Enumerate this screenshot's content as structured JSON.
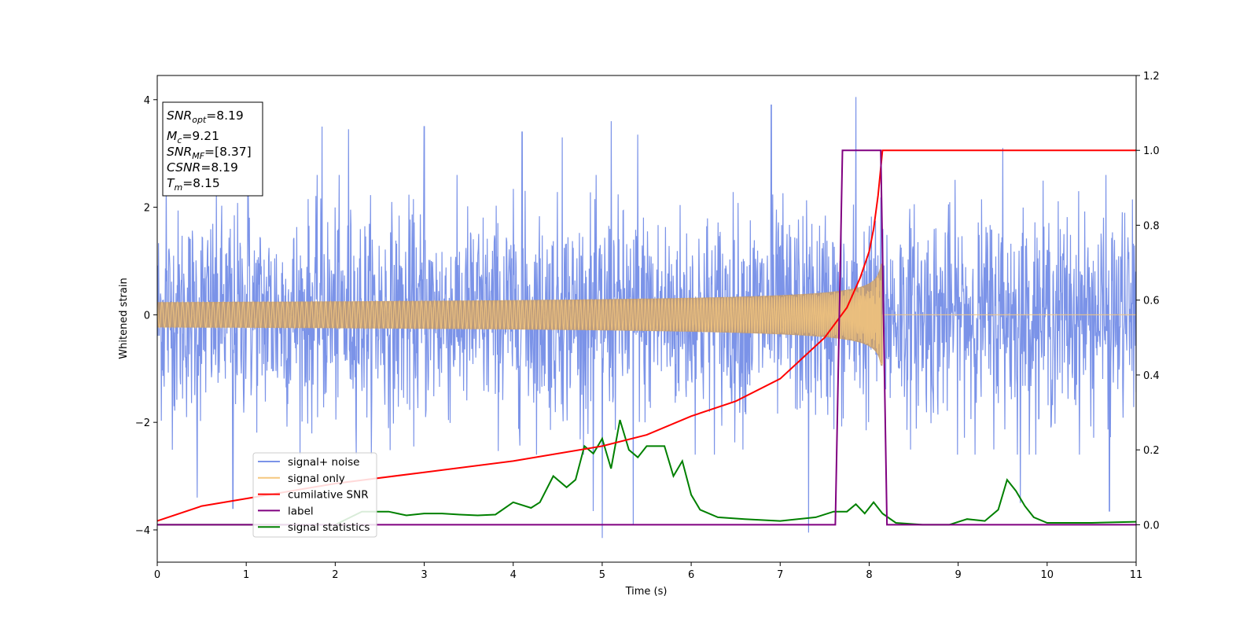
{
  "chart_data": {
    "type": "line",
    "xlabel": "Time (s)",
    "ylabel": "Whitened strain",
    "xlim": [
      0,
      11
    ],
    "ylim": [
      -4.6,
      4.45
    ],
    "y2lim": [
      -0.1,
      1.2
    ],
    "x_ticks": [
      "0",
      "1",
      "2",
      "3",
      "4",
      "5",
      "6",
      "7",
      "8",
      "9",
      "10",
      "11"
    ],
    "y_ticks": [
      "−4",
      "−2",
      "0",
      "2",
      "4"
    ],
    "y2_ticks": [
      "0.0",
      "0.2",
      "0.4",
      "0.6",
      "0.8",
      "1.0",
      "1.2"
    ],
    "grid": false,
    "legend_position": "lower-left",
    "colors": {
      "noise": "#7b93e8",
      "signal": "#f5c77e",
      "signal_fill": "#c09a70",
      "csnr": "#ff0000",
      "label": "#800080",
      "stats": "#008000"
    },
    "series": [
      {
        "name": "signal+ noise",
        "axis": "left",
        "description_values": {
          "envelope_max_typical": 2.2,
          "envelope_min_typical": -2.2,
          "spikes": [
            [
              0.1,
              2.7
            ],
            [
              1.02,
              2.6
            ],
            [
              1.85,
              3.5
            ],
            [
              2.15,
              3.45
            ],
            [
              3.0,
              3.5
            ],
            [
              4.1,
              3.4
            ],
            [
              4.55,
              3.3
            ],
            [
              5.1,
              3.6
            ],
            [
              5.4,
              3.35
            ],
            [
              6.9,
              3.9
            ],
            [
              7.85,
              4.05
            ],
            [
              9.5,
              3.1
            ],
            [
              0.45,
              -3.4
            ],
            [
              0.85,
              -3.6
            ],
            [
              4.9,
              -3.65
            ],
            [
              5.0,
              -4.15
            ],
            [
              5.35,
              -3.9
            ],
            [
              7.32,
              -4.05
            ],
            [
              9.7,
              -3.5
            ],
            [
              10.7,
              -3.65
            ]
          ]
        }
      },
      {
        "name": "signal only",
        "axis": "left",
        "start_time": 0,
        "merger_time": 8.15,
        "amplitude_start": 0.03,
        "amplitude_peak": 0.95
      },
      {
        "name": "cumilative SNR",
        "axis": "right",
        "points": [
          [
            0,
            0.01
          ],
          [
            0.5,
            0.05
          ],
          [
            1,
            0.07
          ],
          [
            2,
            0.11
          ],
          [
            3,
            0.14
          ],
          [
            4,
            0.17
          ],
          [
            5,
            0.21
          ],
          [
            5.5,
            0.24
          ],
          [
            6,
            0.29
          ],
          [
            6.5,
            0.33
          ],
          [
            7,
            0.39
          ],
          [
            7.5,
            0.5
          ],
          [
            7.75,
            0.58
          ],
          [
            7.9,
            0.66
          ],
          [
            8.0,
            0.73
          ],
          [
            8.05,
            0.79
          ],
          [
            8.1,
            0.88
          ],
          [
            8.15,
            1.0
          ],
          [
            11,
            1.0
          ]
        ]
      },
      {
        "name": "label",
        "axis": "right",
        "points": [
          [
            0,
            0.0
          ],
          [
            7.62,
            0.0
          ],
          [
            7.7,
            1.0
          ],
          [
            8.13,
            1.0
          ],
          [
            8.2,
            0.0
          ],
          [
            11,
            0.0
          ]
        ]
      },
      {
        "name": "signal statistics",
        "axis": "right",
        "points": [
          [
            0,
            0.0
          ],
          [
            2.0,
            0.0
          ],
          [
            2.3,
            0.035
          ],
          [
            2.6,
            0.035
          ],
          [
            2.8,
            0.025
          ],
          [
            3.0,
            0.03
          ],
          [
            3.2,
            0.03
          ],
          [
            3.4,
            0.027
          ],
          [
            3.6,
            0.025
          ],
          [
            3.8,
            0.027
          ],
          [
            4.0,
            0.06
          ],
          [
            4.2,
            0.045
          ],
          [
            4.3,
            0.06
          ],
          [
            4.45,
            0.13
          ],
          [
            4.6,
            0.1
          ],
          [
            4.7,
            0.12
          ],
          [
            4.8,
            0.21
          ],
          [
            4.9,
            0.19
          ],
          [
            5.0,
            0.23
          ],
          [
            5.1,
            0.15
          ],
          [
            5.2,
            0.28
          ],
          [
            5.3,
            0.2
          ],
          [
            5.4,
            0.18
          ],
          [
            5.5,
            0.21
          ],
          [
            5.7,
            0.21
          ],
          [
            5.8,
            0.13
          ],
          [
            5.9,
            0.17
          ],
          [
            6.0,
            0.08
          ],
          [
            6.1,
            0.04
          ],
          [
            6.3,
            0.02
          ],
          [
            6.6,
            0.015
          ],
          [
            7.0,
            0.01
          ],
          [
            7.4,
            0.02
          ],
          [
            7.6,
            0.035
          ],
          [
            7.75,
            0.035
          ],
          [
            7.85,
            0.055
          ],
          [
            7.95,
            0.03
          ],
          [
            8.05,
            0.06
          ],
          [
            8.15,
            0.03
          ],
          [
            8.3,
            0.005
          ],
          [
            8.6,
            0.0
          ],
          [
            8.9,
            0.0
          ],
          [
            9.1,
            0.015
          ],
          [
            9.3,
            0.01
          ],
          [
            9.45,
            0.04
          ],
          [
            9.55,
            0.12
          ],
          [
            9.65,
            0.09
          ],
          [
            9.75,
            0.05
          ],
          [
            9.85,
            0.02
          ],
          [
            10.0,
            0.005
          ],
          [
            10.5,
            0.005
          ],
          [
            11,
            0.008
          ]
        ]
      }
    ],
    "annotation": {
      "lines": [
        {
          "label": "SNR",
          "sub": "opt",
          "value": "=8.19"
        },
        {
          "label": "M",
          "sub": "c",
          "value": "=9.21"
        },
        {
          "label": "SNR",
          "sub": "MF",
          "value": "=[8.37]"
        },
        {
          "label": "CSNR",
          "sub": "",
          "value": "=8.19"
        },
        {
          "label": "T",
          "sub": "m",
          "value": "=8.15"
        }
      ]
    }
  }
}
